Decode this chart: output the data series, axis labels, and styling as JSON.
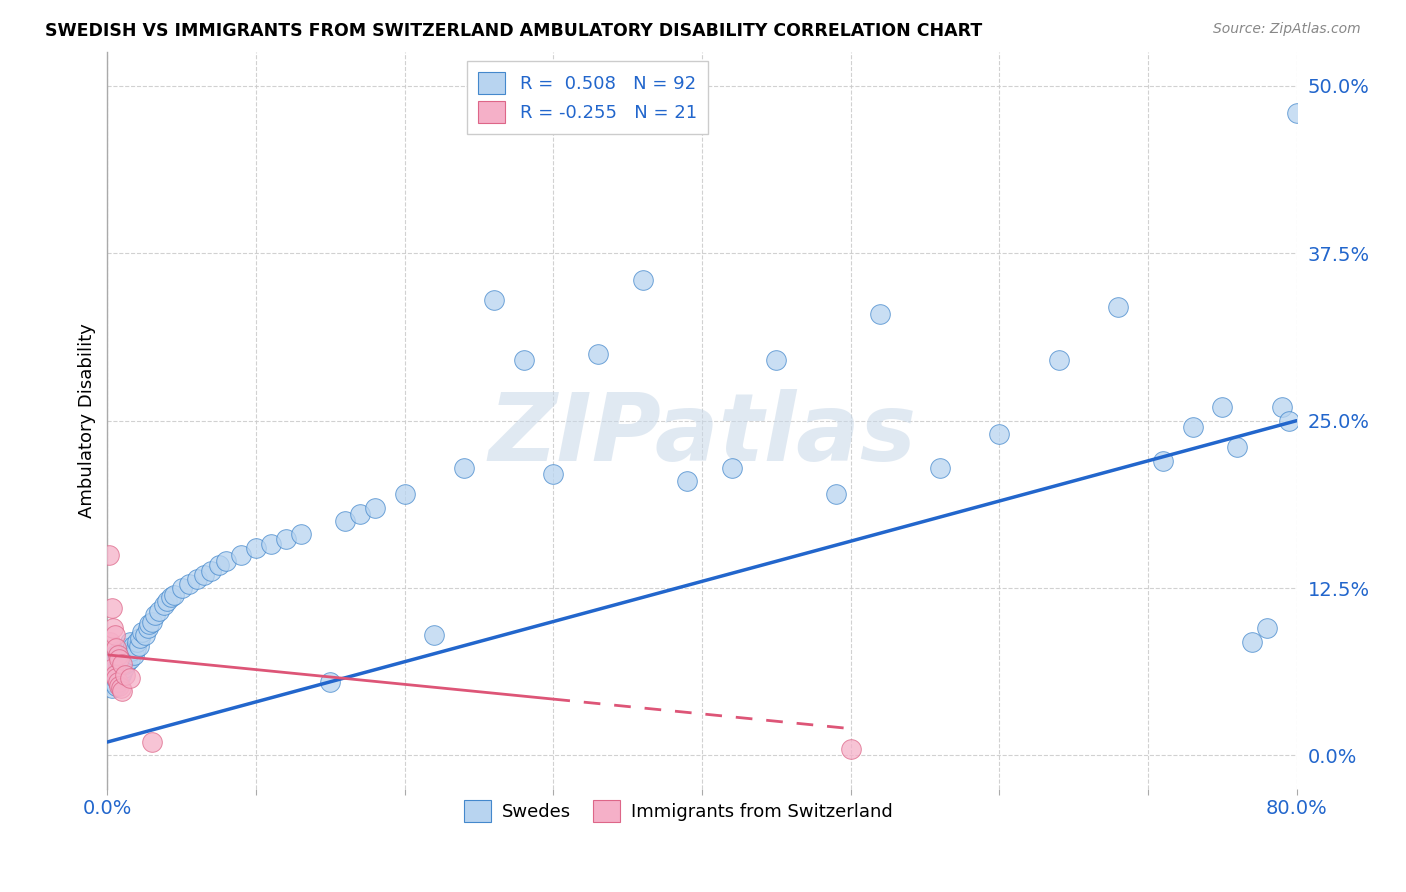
{
  "title": "SWEDISH VS IMMIGRANTS FROM SWITZERLAND AMBULATORY DISABILITY CORRELATION CHART",
  "source": "Source: ZipAtlas.com",
  "ylabel": "Ambulatory Disability",
  "watermark": "ZIPatlas",
  "xlim": [
    0.0,
    0.8
  ],
  "ylim": [
    -0.025,
    0.525
  ],
  "yticks": [
    0.0,
    0.125,
    0.25,
    0.375,
    0.5
  ],
  "ytick_labels": [
    "0.0%",
    "12.5%",
    "25.0%",
    "37.5%",
    "50.0%"
  ],
  "xtick_vals": [
    0.0,
    0.1,
    0.2,
    0.3,
    0.4,
    0.5,
    0.6,
    0.7,
    0.8
  ],
  "xtick_labels": [
    "0.0%",
    "",
    "",
    "",
    "",
    "",
    "",
    "",
    "80.0%"
  ],
  "blue_R": "0.508",
  "blue_N": "92",
  "pink_R": "-0.255",
  "pink_N": "21",
  "blue_fill": "#b8d4f0",
  "pink_fill": "#f5b0c8",
  "blue_edge": "#4488cc",
  "pink_edge": "#dd6688",
  "blue_line": "#2266cc",
  "pink_line": "#dd5577",
  "grid_color": "#cccccc",
  "bg": "#ffffff",
  "blue_x": [
    0.001,
    0.002,
    0.002,
    0.003,
    0.003,
    0.003,
    0.004,
    0.004,
    0.005,
    0.005,
    0.005,
    0.006,
    0.006,
    0.006,
    0.007,
    0.007,
    0.007,
    0.008,
    0.008,
    0.008,
    0.009,
    0.009,
    0.01,
    0.01,
    0.011,
    0.011,
    0.012,
    0.012,
    0.013,
    0.014,
    0.015,
    0.015,
    0.016,
    0.017,
    0.018,
    0.019,
    0.02,
    0.021,
    0.022,
    0.023,
    0.025,
    0.027,
    0.028,
    0.03,
    0.032,
    0.035,
    0.038,
    0.04,
    0.043,
    0.045,
    0.05,
    0.055,
    0.06,
    0.065,
    0.07,
    0.075,
    0.08,
    0.09,
    0.1,
    0.11,
    0.12,
    0.13,
    0.15,
    0.16,
    0.17,
    0.18,
    0.2,
    0.22,
    0.24,
    0.26,
    0.28,
    0.3,
    0.33,
    0.36,
    0.39,
    0.42,
    0.45,
    0.49,
    0.52,
    0.56,
    0.6,
    0.64,
    0.68,
    0.71,
    0.73,
    0.75,
    0.76,
    0.77,
    0.78,
    0.79,
    0.795,
    0.8
  ],
  "blue_y": [
    0.06,
    0.055,
    0.065,
    0.05,
    0.06,
    0.07,
    0.055,
    0.065,
    0.058,
    0.068,
    0.075,
    0.052,
    0.062,
    0.072,
    0.055,
    0.065,
    0.075,
    0.058,
    0.068,
    0.078,
    0.06,
    0.072,
    0.062,
    0.074,
    0.065,
    0.078,
    0.068,
    0.08,
    0.07,
    0.075,
    0.072,
    0.085,
    0.078,
    0.082,
    0.075,
    0.08,
    0.085,
    0.082,
    0.088,
    0.092,
    0.09,
    0.095,
    0.098,
    0.1,
    0.105,
    0.108,
    0.112,
    0.115,
    0.118,
    0.12,
    0.125,
    0.128,
    0.132,
    0.135,
    0.138,
    0.142,
    0.145,
    0.15,
    0.155,
    0.158,
    0.162,
    0.165,
    0.055,
    0.175,
    0.18,
    0.185,
    0.195,
    0.09,
    0.215,
    0.34,
    0.295,
    0.21,
    0.3,
    0.355,
    0.205,
    0.215,
    0.295,
    0.195,
    0.33,
    0.215,
    0.24,
    0.295,
    0.335,
    0.22,
    0.245,
    0.26,
    0.23,
    0.085,
    0.095,
    0.26,
    0.25,
    0.48
  ],
  "pink_x": [
    0.001,
    0.002,
    0.003,
    0.003,
    0.004,
    0.004,
    0.005,
    0.005,
    0.006,
    0.006,
    0.007,
    0.007,
    0.008,
    0.008,
    0.009,
    0.01,
    0.01,
    0.012,
    0.015,
    0.03,
    0.5
  ],
  "pink_y": [
    0.15,
    0.085,
    0.07,
    0.11,
    0.065,
    0.095,
    0.06,
    0.09,
    0.058,
    0.08,
    0.055,
    0.075,
    0.052,
    0.072,
    0.05,
    0.048,
    0.068,
    0.06,
    0.058,
    0.01,
    0.005
  ],
  "blue_line_x0": 0.0,
  "blue_line_y0": 0.01,
  "blue_line_x1": 0.8,
  "blue_line_y1": 0.25,
  "pink_line_x0": 0.001,
  "pink_line_y0": 0.075,
  "pink_line_x1": 0.5,
  "pink_line_y1": 0.02
}
